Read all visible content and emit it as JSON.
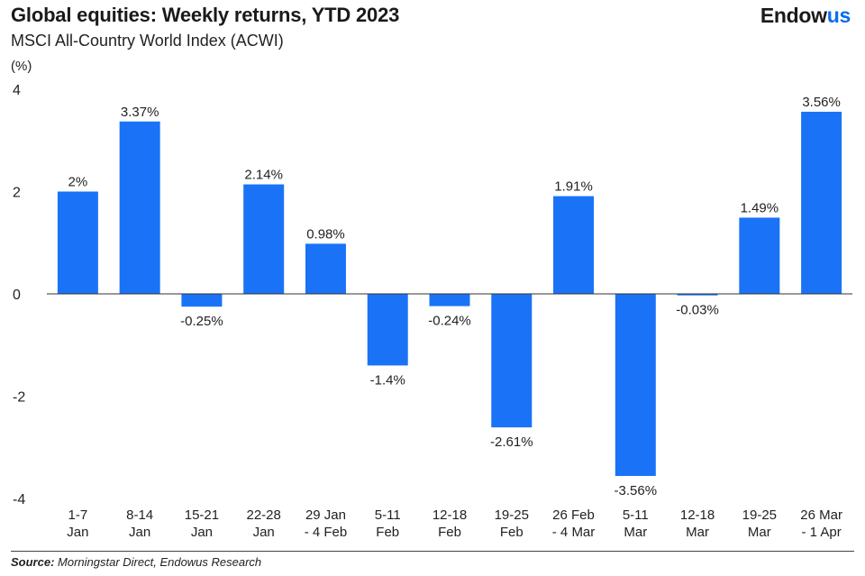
{
  "header": {
    "title": "Global equities: Weekly returns, YTD 2023",
    "subtitle": "MSCI All-Country World Index (ACWI)",
    "logo_main": "Endow",
    "logo_accent": "us"
  },
  "footer": {
    "source_label": "Source:",
    "source_text": " Morningstar Direct, Endowus Research"
  },
  "colors": {
    "bar": "#1a73f7",
    "accent": "#0a6cf5"
  },
  "chart_data": {
    "type": "bar",
    "title": "Global equities: Weekly returns, YTD 2023",
    "subtitle": "MSCI All-Country World Index (ACWI)",
    "ylabel": "(%)",
    "xlabel": "",
    "ylim": [
      -4,
      4
    ],
    "yticks": [
      4,
      2,
      0,
      -2,
      -4
    ],
    "grid": false,
    "categories": [
      [
        "1-7",
        "Jan"
      ],
      [
        "8-14",
        "Jan"
      ],
      [
        "15-21",
        "Jan"
      ],
      [
        "22-28",
        "Jan"
      ],
      [
        "29 Jan",
        "- 4 Feb"
      ],
      [
        "5-11",
        "Feb"
      ],
      [
        "12-18",
        "Feb"
      ],
      [
        "19-25",
        "Feb"
      ],
      [
        "26 Feb",
        "- 4 Mar"
      ],
      [
        "5-11",
        "Mar"
      ],
      [
        "12-18",
        "Mar"
      ],
      [
        "19-25",
        "Mar"
      ],
      [
        "26 Mar",
        "- 1 Apr"
      ]
    ],
    "values": [
      2,
      3.37,
      -0.25,
      2.14,
      0.98,
      -1.4,
      -0.24,
      -2.61,
      1.91,
      -3.56,
      -0.03,
      1.49,
      3.56
    ],
    "data_labels": [
      "2%",
      "3.37%",
      "-0.25%",
      "2.14%",
      "0.98%",
      "-1.4%",
      "-0.24%",
      "-2.61%",
      "1.91%",
      "-3.56%",
      "-0.03%",
      "1.49%",
      "3.56%"
    ]
  }
}
